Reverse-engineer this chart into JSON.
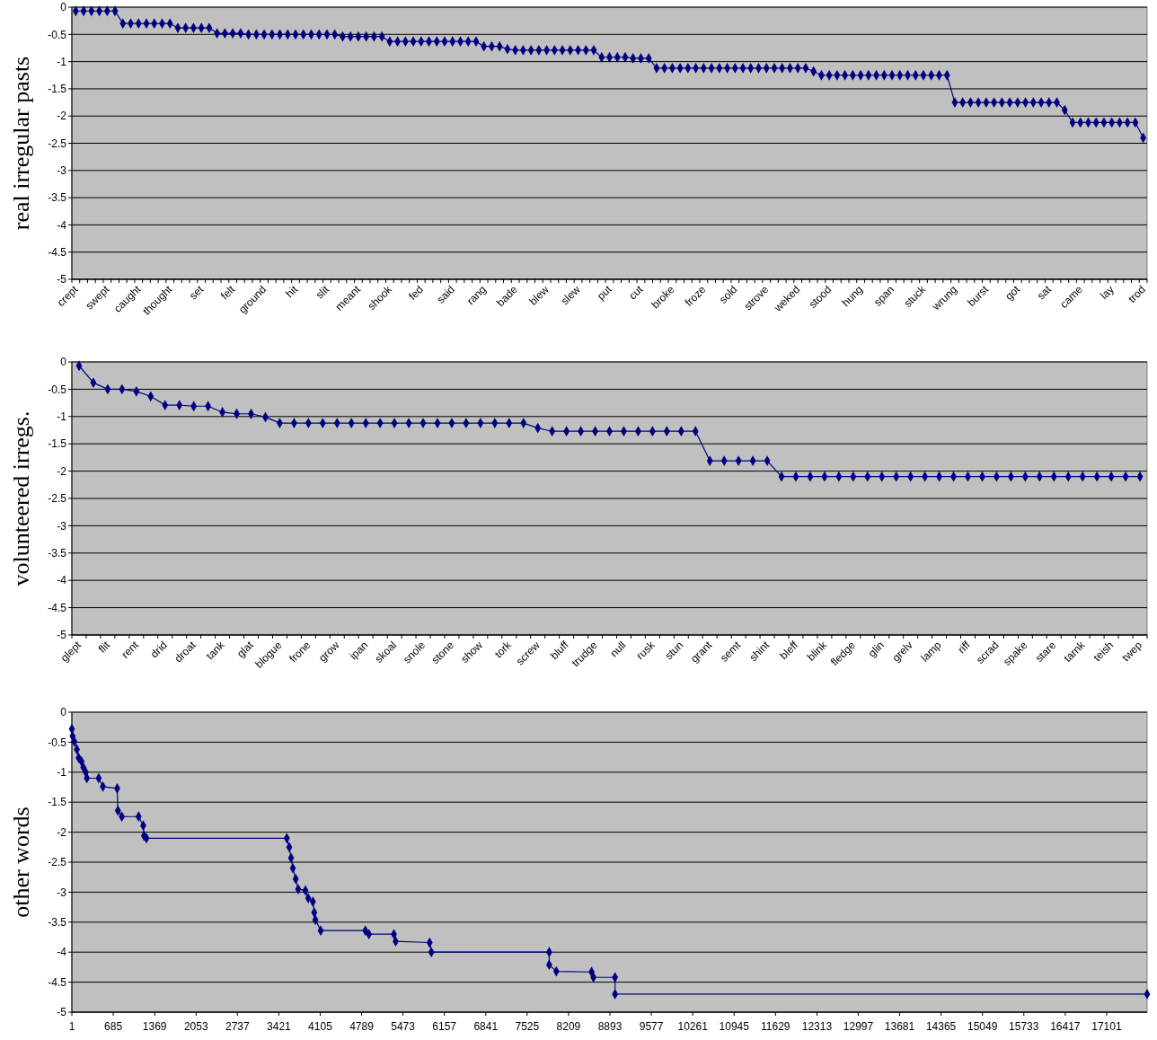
{
  "chart_data": [
    {
      "type": "line",
      "ylabel": "real irregular pasts",
      "marker": "diamond",
      "grid": "y",
      "ylim": [
        -5,
        0
      ],
      "yticks": [
        0,
        -0.5,
        -1,
        -1.5,
        -2,
        -2.5,
        -3,
        -3.5,
        -4,
        -4.5,
        -5
      ],
      "categories": [
        "crept",
        null,
        null,
        null,
        "swept",
        null,
        null,
        null,
        "caught",
        null,
        null,
        null,
        "thought",
        null,
        null,
        null,
        "set",
        null,
        null,
        null,
        "felt",
        null,
        null,
        null,
        "ground",
        null,
        null,
        null,
        "hit",
        null,
        null,
        null,
        "slit",
        null,
        null,
        null,
        "meant",
        null,
        null,
        null,
        "shook",
        null,
        null,
        null,
        "fed",
        null,
        null,
        null,
        "said",
        null,
        null,
        null,
        "rang",
        null,
        null,
        null,
        "bade",
        null,
        null,
        null,
        "blew",
        null,
        null,
        null,
        "slew",
        null,
        null,
        null,
        "put",
        null,
        null,
        null,
        "cut",
        null,
        null,
        null,
        "broke",
        null,
        null,
        null,
        "froze",
        null,
        null,
        null,
        "sold",
        null,
        null,
        null,
        "strove",
        null,
        null,
        null,
        "weked",
        null,
        null,
        null,
        "stood",
        null,
        null,
        null,
        "hung",
        null,
        null,
        null,
        "span",
        null,
        null,
        null,
        "stuck",
        null,
        null,
        null,
        "wrung",
        null,
        null,
        null,
        "burst",
        null,
        null,
        null,
        "got",
        null,
        null,
        null,
        "sat",
        null,
        null,
        null,
        "came",
        null,
        null,
        null,
        "lay",
        null,
        null,
        null,
        "trod"
      ],
      "series": [
        {
          "color": "#000080",
          "values": [
            -0.07,
            -0.07,
            -0.07,
            -0.07,
            -0.07,
            -0.07,
            -0.3,
            -0.3,
            -0.3,
            -0.3,
            -0.3,
            -0.3,
            -0.3,
            -0.38,
            -0.38,
            -0.38,
            -0.38,
            -0.38,
            -0.48,
            -0.48,
            -0.48,
            -0.48,
            -0.5,
            -0.5,
            -0.5,
            -0.5,
            -0.5,
            -0.5,
            -0.5,
            -0.5,
            -0.5,
            -0.5,
            -0.5,
            -0.5,
            -0.54,
            -0.54,
            -0.54,
            -0.54,
            -0.54,
            -0.54,
            -0.63,
            -0.63,
            -0.63,
            -0.63,
            -0.63,
            -0.63,
            -0.63,
            -0.63,
            -0.63,
            -0.63,
            -0.63,
            -0.63,
            -0.72,
            -0.72,
            -0.72,
            -0.77,
            -0.79,
            -0.79,
            -0.79,
            -0.79,
            -0.79,
            -0.79,
            -0.79,
            -0.79,
            -0.79,
            -0.79,
            -0.79,
            -0.92,
            -0.92,
            -0.92,
            -0.92,
            -0.94,
            -0.94,
            -0.94,
            -1.12,
            -1.12,
            -1.12,
            -1.12,
            -1.12,
            -1.12,
            -1.12,
            -1.12,
            -1.12,
            -1.12,
            -1.12,
            -1.12,
            -1.12,
            -1.12,
            -1.12,
            -1.12,
            -1.12,
            -1.12,
            -1.12,
            -1.12,
            -1.18,
            -1.25,
            -1.25,
            -1.25,
            -1.25,
            -1.25,
            -1.25,
            -1.25,
            -1.25,
            -1.25,
            -1.25,
            -1.25,
            -1.25,
            -1.25,
            -1.25,
            -1.25,
            -1.25,
            -1.25,
            -1.75,
            -1.75,
            -1.75,
            -1.75,
            -1.75,
            -1.75,
            -1.75,
            -1.75,
            -1.75,
            -1.75,
            -1.75,
            -1.75,
            -1.75,
            -1.75,
            -1.89,
            -2.12,
            -2.12,
            -2.12,
            -2.12,
            -2.12,
            -2.12,
            -2.12,
            -2.12,
            -2.12,
            -2.4
          ]
        }
      ]
    },
    {
      "type": "line",
      "ylabel": "volunteered irregs.",
      "marker": "diamond",
      "grid": "y",
      "ylim": [
        -5,
        0
      ],
      "yticks": [
        0,
        -0.5,
        -1,
        -1.5,
        -2,
        -2.5,
        -3,
        -3.5,
        -4,
        -4.5,
        -5
      ],
      "categories": [
        "glept",
        null,
        "flit",
        null,
        "rent",
        null,
        "drid",
        null,
        "droat",
        null,
        "tank",
        null,
        "glat",
        null,
        "blogue",
        null,
        "frone",
        null,
        "grow",
        null,
        "ipan",
        null,
        "skoal",
        null,
        "snole",
        null,
        "stone",
        null,
        "show",
        null,
        "tork",
        null,
        "screw",
        null,
        "bluff",
        null,
        "trudge",
        null,
        "null",
        null,
        "rusk",
        null,
        "stun",
        null,
        "grant",
        null,
        "semt",
        null,
        "shint",
        null,
        "bleff",
        null,
        "blink",
        null,
        "fledge",
        null,
        "glin",
        null,
        "grelv",
        null,
        "lamp",
        null,
        "riff",
        null,
        "scrad",
        null,
        "spake",
        null,
        "stare",
        null,
        "tarnk",
        null,
        "teish",
        null,
        "twep"
      ],
      "series": [
        {
          "color": "#000080",
          "values": [
            -0.07,
            -0.38,
            -0.5,
            -0.5,
            -0.54,
            -0.63,
            -0.79,
            -0.79,
            -0.81,
            -0.81,
            -0.92,
            -0.95,
            -0.95,
            -1.01,
            -1.12,
            -1.12,
            -1.12,
            -1.12,
            -1.12,
            -1.12,
            -1.12,
            -1.12,
            -1.12,
            -1.12,
            -1.12,
            -1.12,
            -1.12,
            -1.12,
            -1.12,
            -1.12,
            -1.12,
            -1.12,
            -1.21,
            -1.27,
            -1.27,
            -1.27,
            -1.27,
            -1.27,
            -1.27,
            -1.27,
            -1.27,
            -1.27,
            -1.27,
            -1.27,
            -1.81,
            -1.81,
            -1.81,
            -1.81,
            -1.81,
            -2.1,
            -2.1,
            -2.1,
            -2.1,
            -2.1,
            -2.1,
            -2.1,
            -2.1,
            -2.1,
            -2.1,
            -2.1,
            -2.1,
            -2.1,
            -2.1,
            -2.1,
            -2.1,
            -2.1,
            -2.1,
            -2.1,
            -2.1,
            -2.1,
            -2.1,
            -2.1,
            -2.1,
            -2.1,
            -2.1
          ]
        }
      ]
    },
    {
      "type": "line",
      "ylabel": "other words",
      "marker": "diamond",
      "grid": "y",
      "ylim": [
        -5,
        0
      ],
      "yticks": [
        0,
        -0.5,
        -1,
        -1.5,
        -2,
        -2.5,
        -3,
        -3.5,
        -4,
        -4.5,
        -5
      ],
      "xlim": [
        1,
        17770
      ],
      "xticks": [
        1,
        685,
        1369,
        2053,
        2737,
        3421,
        4105,
        4789,
        5473,
        6157,
        6841,
        7525,
        8209,
        8893,
        9577,
        10261,
        10945,
        11629,
        12313,
        12997,
        13681,
        14365,
        15049,
        15733,
        16417,
        17101
      ],
      "x": [
        1,
        13,
        42,
        84,
        113,
        160,
        190,
        231,
        249,
        444,
        514,
        750,
        762,
        827,
        1104,
        1181,
        1193,
        1234,
        3553,
        3594,
        3624,
        3653,
        3700,
        3742,
        3860,
        3907,
        3984,
        4007,
        4025,
        4113,
        4851,
        4910,
        5323,
        5352,
        5913,
        5942,
        7889,
        7889,
        8007,
        8590,
        8620,
        8977,
        8977,
        17770
      ],
      "series": [
        {
          "color": "#000080",
          "values": [
            -0.28,
            -0.4,
            -0.49,
            -0.62,
            -0.76,
            -0.82,
            -0.92,
            -1.0,
            -1.1,
            -1.1,
            -1.24,
            -1.27,
            -1.64,
            -1.74,
            -1.74,
            -1.89,
            -2.06,
            -2.1,
            -2.1,
            -2.25,
            -2.43,
            -2.6,
            -2.78,
            -2.95,
            -2.97,
            -3.1,
            -3.16,
            -3.34,
            -3.46,
            -3.64,
            -3.64,
            -3.7,
            -3.7,
            -3.82,
            -3.84,
            -4.0,
            -4.0,
            -4.21,
            -4.32,
            -4.33,
            -4.42,
            -4.42,
            -4.7,
            -4.7
          ]
        }
      ]
    }
  ]
}
